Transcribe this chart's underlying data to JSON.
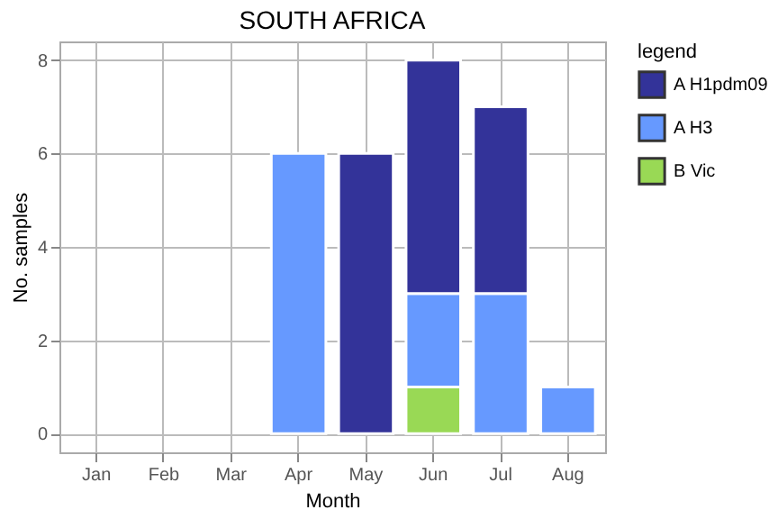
{
  "chart_data": {
    "type": "bar",
    "title": "SOUTH AFRICA",
    "xlabel": "Month",
    "ylabel": "No. samples",
    "legend_title": "legend",
    "categories": [
      "Jan",
      "Feb",
      "Mar",
      "Apr",
      "May",
      "Jun",
      "Jul",
      "Aug"
    ],
    "stacked": true,
    "series": [
      {
        "name": "B Vic",
        "color": "#99d955",
        "values": [
          null,
          null,
          null,
          null,
          null,
          1,
          null,
          null
        ]
      },
      {
        "name": "A H3",
        "color": "#6699ff",
        "values": [
          null,
          null,
          null,
          6,
          null,
          2,
          3,
          1
        ]
      },
      {
        "name": "A H1pdm09",
        "color": "#333399",
        "values": [
          null,
          null,
          null,
          null,
          6,
          5,
          4,
          null
        ]
      }
    ],
    "ylim": [
      -0.4,
      8.4
    ],
    "yticks": [
      0,
      2,
      4,
      6,
      8
    ],
    "grid": true,
    "legend": "right"
  }
}
